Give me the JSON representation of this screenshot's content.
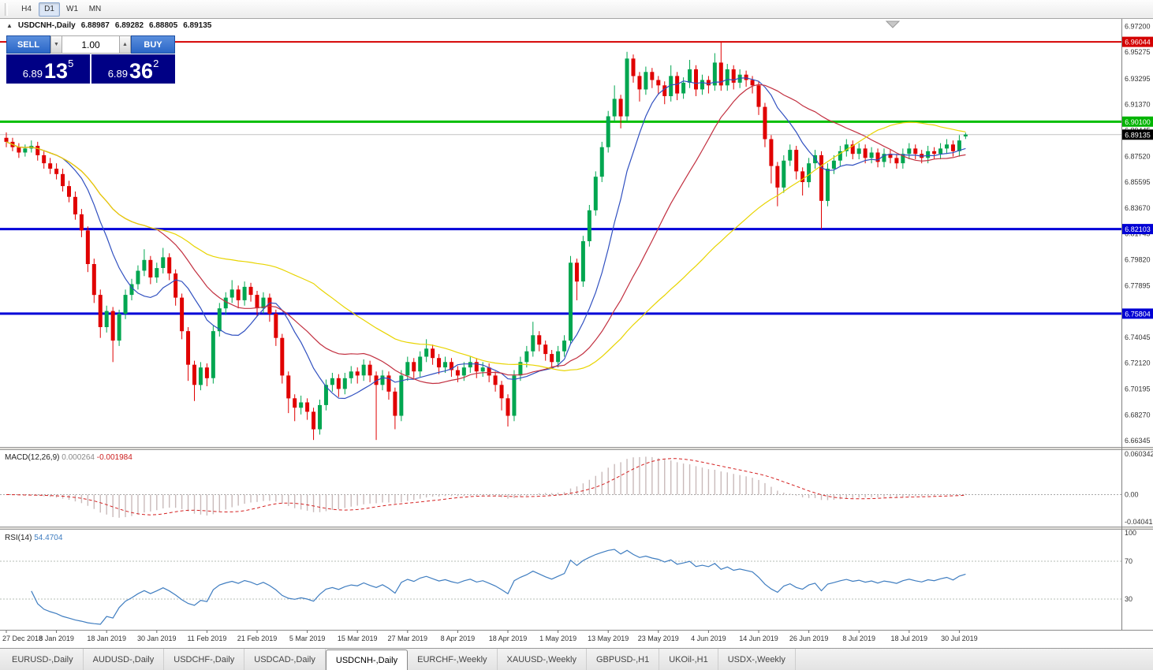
{
  "toolbar": {
    "periods": [
      {
        "label": "H4",
        "active": false
      },
      {
        "label": "D1",
        "active": true
      },
      {
        "label": "W1",
        "active": false
      },
      {
        "label": "MN",
        "active": false
      }
    ]
  },
  "chart_header": {
    "title": "USDCNH-,Daily",
    "open": "6.88987",
    "high": "6.89282",
    "low": "6.88805",
    "close": "6.89135"
  },
  "trade_panel": {
    "sell_label": "SELL",
    "buy_label": "BUY",
    "volume": "1.00",
    "sell_price": {
      "prefix": "6.89",
      "big": "13",
      "sup": "5"
    },
    "buy_price": {
      "prefix": "6.89",
      "big": "36",
      "sup": "2"
    }
  },
  "price_axis": {
    "ticks": [
      "6.97200",
      "6.95275",
      "6.93295",
      "6.91370",
      "6.89445",
      "6.87520",
      "6.85595",
      "6.83670",
      "6.81745",
      "6.79820",
      "6.77895",
      "6.75970",
      "6.74045",
      "6.72120",
      "6.70195",
      "6.68270",
      "6.66345"
    ],
    "tags": [
      {
        "value": "6.96044",
        "price": 6.96044,
        "bg": "#d40000"
      },
      {
        "value": "6.90100",
        "price": 6.901,
        "bg": "#00b400"
      },
      {
        "value": "6.89135",
        "price": 6.89135,
        "bg": "#000000"
      },
      {
        "value": "6.82103",
        "price": 6.82103,
        "bg": "#0000d4"
      },
      {
        "value": "6.75804",
        "price": 6.75804,
        "bg": "#0000d4"
      }
    ]
  },
  "macd": {
    "label": "MACD(12,26,9)",
    "main_value": "0.000264",
    "signal_value": "-0.001984",
    "fast": 12,
    "slow": 26,
    "signal_period": 9,
    "axis_ticks": [
      {
        "label": "0.060342",
        "value": 0.060342
      },
      {
        "label": "0.00",
        "value": 0.0
      },
      {
        "label": "-0.040415",
        "value": -0.040415
      }
    ],
    "ylim": [
      -0.040415,
      0.060342
    ],
    "bar_color": "#c9baba",
    "signal_color": "#d42020"
  },
  "rsi": {
    "label": "RSI(14)",
    "value": "54.4704",
    "period": 14,
    "axis_ticks": [
      {
        "label": "100",
        "value": 100
      },
      {
        "label": "70",
        "value": 70
      },
      {
        "label": "30",
        "value": 30
      }
    ],
    "levels": [
      70,
      30
    ],
    "line_color": "#3f7dc0"
  },
  "tabs": [
    {
      "label": "EURUSD-,Daily",
      "active": false
    },
    {
      "label": "AUDUSD-,Daily",
      "active": false
    },
    {
      "label": "USDCHF-,Daily",
      "active": false
    },
    {
      "label": "USDCAD-,Daily",
      "active": false
    },
    {
      "label": "USDCNH-,Daily",
      "active": true
    },
    {
      "label": "EURCHF-,Weekly",
      "active": false
    },
    {
      "label": "XAUUSD-,Weekly",
      "active": false
    },
    {
      "label": "GBPUSD-,H1",
      "active": false
    },
    {
      "label": "UKOil-,H1",
      "active": false
    },
    {
      "label": "USDX-,Weekly",
      "active": false
    }
  ],
  "chart_data": {
    "type": "candlestick",
    "symbol": "USDCNH",
    "timeframe": "Daily",
    "ylim": [
      6.6594,
      6.9775
    ],
    "current_price": 6.89135,
    "up_color": "#00a650",
    "down_color": "#e00000",
    "hlines": [
      {
        "price": 6.96044,
        "color": "#d40000",
        "width": 2
      },
      {
        "price": 6.901,
        "color": "#00be00",
        "width": 3
      },
      {
        "price": 6.82103,
        "color": "#0000d8",
        "width": 3
      },
      {
        "price": 6.75804,
        "color": "#0000d8",
        "width": 3
      }
    ],
    "moving_averages": [
      {
        "period": 10,
        "color": "#3050c0"
      },
      {
        "period": 25,
        "color": "#c23040"
      },
      {
        "period": 50,
        "color": "#e8d400"
      }
    ],
    "x_label_step": 8,
    "x_labels": [
      "27 Dec 2018",
      "8 Jan 2019",
      "18 Jan 2019",
      "30 Jan 2019",
      "11 Feb 2019",
      "21 Feb 2019",
      "5 Mar 2019",
      "15 Mar 2019",
      "27 Mar 2019",
      "8 Apr 2019",
      "18 Apr 2019",
      "1 May 2019",
      "13 May 2019",
      "23 May 2019",
      "4 Jun 2019",
      "14 Jun 2019",
      "26 Jun 2019",
      "8 Jul 2019",
      "18 Jul 2019",
      "30 Jul 2019"
    ],
    "ohlc": [
      [
        6.889,
        6.893,
        6.882,
        6.886
      ],
      [
        6.886,
        6.889,
        6.879,
        6.882
      ],
      [
        6.882,
        6.885,
        6.874,
        6.878
      ],
      [
        6.878,
        6.884,
        6.875,
        6.881
      ],
      [
        6.881,
        6.887,
        6.878,
        6.883
      ],
      [
        6.883,
        6.886,
        6.872,
        6.876
      ],
      [
        6.876,
        6.879,
        6.866,
        6.87
      ],
      [
        6.87,
        6.874,
        6.862,
        6.866
      ],
      [
        6.866,
        6.87,
        6.858,
        6.862
      ],
      [
        6.862,
        6.866,
        6.849,
        6.853
      ],
      [
        6.853,
        6.857,
        6.841,
        6.845
      ],
      [
        6.845,
        6.849,
        6.828,
        6.832
      ],
      [
        6.832,
        6.836,
        6.815,
        6.82
      ],
      [
        6.82,
        6.823,
        6.789,
        6.795
      ],
      [
        6.795,
        6.799,
        6.766,
        6.772
      ],
      [
        6.772,
        6.776,
        6.74,
        6.748
      ],
      [
        6.748,
        6.764,
        6.744,
        6.76
      ],
      [
        6.76,
        6.763,
        6.722,
        6.738
      ],
      [
        6.738,
        6.761,
        6.734,
        6.758
      ],
      [
        6.758,
        6.776,
        6.754,
        6.772
      ],
      [
        6.772,
        6.784,
        6.768,
        6.78
      ],
      [
        6.78,
        6.794,
        6.776,
        6.79
      ],
      [
        6.79,
        6.806,
        6.786,
        6.798
      ],
      [
        6.798,
        6.801,
        6.78,
        6.785
      ],
      [
        6.785,
        6.796,
        6.781,
        6.792
      ],
      [
        6.792,
        6.807,
        6.788,
        6.8
      ],
      [
        6.8,
        6.803,
        6.783,
        6.788
      ],
      [
        6.788,
        6.791,
        6.764,
        6.77
      ],
      [
        6.77,
        6.773,
        6.739,
        6.745
      ],
      [
        6.745,
        6.748,
        6.708,
        6.72
      ],
      [
        6.72,
        6.723,
        6.693,
        6.705
      ],
      [
        6.705,
        6.722,
        6.701,
        6.718
      ],
      [
        6.718,
        6.721,
        6.704,
        6.71
      ],
      [
        6.71,
        6.749,
        6.706,
        6.745
      ],
      [
        6.745,
        6.766,
        6.741,
        6.762
      ],
      [
        6.762,
        6.774,
        6.757,
        6.77
      ],
      [
        6.77,
        6.783,
        6.766,
        6.776
      ],
      [
        6.776,
        6.779,
        6.762,
        6.768
      ],
      [
        6.768,
        6.782,
        6.764,
        6.778
      ],
      [
        6.778,
        6.781,
        6.767,
        6.772
      ],
      [
        6.772,
        6.775,
        6.756,
        6.762
      ],
      [
        6.762,
        6.774,
        6.758,
        6.77
      ],
      [
        6.77,
        6.773,
        6.752,
        6.758
      ],
      [
        6.758,
        6.761,
        6.734,
        6.74
      ],
      [
        6.74,
        6.743,
        6.706,
        6.712
      ],
      [
        6.712,
        6.715,
        6.684,
        6.695
      ],
      [
        6.695,
        6.698,
        6.678,
        6.688
      ],
      [
        6.688,
        6.697,
        6.683,
        6.692
      ],
      [
        6.692,
        6.695,
        6.679,
        6.685
      ],
      [
        6.685,
        6.688,
        6.664,
        6.672
      ],
      [
        6.672,
        6.694,
        6.668,
        6.69
      ],
      [
        6.69,
        6.709,
        6.686,
        6.705
      ],
      [
        6.705,
        6.714,
        6.7,
        6.71
      ],
      [
        6.71,
        6.713,
        6.696,
        6.702
      ],
      [
        6.702,
        6.714,
        6.698,
        6.71
      ],
      [
        6.71,
        6.719,
        6.706,
        6.715
      ],
      [
        6.715,
        6.718,
        6.706,
        6.712
      ],
      [
        6.712,
        6.724,
        6.708,
        6.72
      ],
      [
        6.72,
        6.723,
        6.707,
        6.712
      ],
      [
        6.712,
        6.715,
        6.664,
        6.705
      ],
      [
        6.705,
        6.716,
        6.701,
        6.712
      ],
      [
        6.712,
        6.715,
        6.694,
        6.7
      ],
      [
        6.7,
        6.703,
        6.672,
        6.682
      ],
      [
        6.682,
        6.716,
        6.678,
        6.712
      ],
      [
        6.712,
        6.726,
        6.708,
        6.722
      ],
      [
        6.722,
        6.725,
        6.71,
        6.715
      ],
      [
        6.715,
        6.73,
        6.711,
        6.726
      ],
      [
        6.726,
        6.739,
        6.722,
        6.732
      ],
      [
        6.732,
        6.735,
        6.72,
        6.725
      ],
      [
        6.725,
        6.728,
        6.713,
        6.718
      ],
      [
        6.718,
        6.726,
        6.714,
        6.722
      ],
      [
        6.722,
        6.725,
        6.711,
        6.716
      ],
      [
        6.716,
        6.719,
        6.707,
        6.712
      ],
      [
        6.712,
        6.722,
        6.708,
        6.718
      ],
      [
        6.718,
        6.726,
        6.714,
        6.722
      ],
      [
        6.722,
        6.725,
        6.71,
        6.715
      ],
      [
        6.715,
        6.722,
        6.711,
        6.718
      ],
      [
        6.718,
        6.721,
        6.707,
        6.712
      ],
      [
        6.712,
        6.715,
        6.7,
        6.705
      ],
      [
        6.705,
        6.708,
        6.686,
        6.695
      ],
      [
        6.695,
        6.698,
        6.674,
        6.682
      ],
      [
        6.682,
        6.716,
        6.678,
        6.712
      ],
      [
        6.712,
        6.726,
        6.708,
        6.722
      ],
      [
        6.722,
        6.734,
        6.718,
        6.73
      ],
      [
        6.73,
        6.752,
        6.726,
        6.742
      ],
      [
        6.742,
        6.745,
        6.73,
        6.735
      ],
      [
        6.735,
        6.738,
        6.723,
        6.728
      ],
      [
        6.728,
        6.731,
        6.717,
        6.722
      ],
      [
        6.722,
        6.734,
        6.718,
        6.73
      ],
      [
        6.73,
        6.742,
        6.726,
        6.738
      ],
      [
        6.738,
        6.801,
        6.735,
        6.796
      ],
      [
        6.796,
        6.799,
        6.768,
        6.782
      ],
      [
        6.782,
        6.816,
        6.778,
        6.812
      ],
      [
        6.812,
        6.839,
        6.808,
        6.835
      ],
      [
        6.835,
        6.864,
        6.831,
        6.86
      ],
      [
        6.86,
        6.886,
        6.856,
        6.882
      ],
      [
        6.882,
        6.909,
        6.878,
        6.905
      ],
      [
        6.905,
        6.928,
        6.901,
        6.918
      ],
      [
        6.918,
        6.921,
        6.896,
        6.905
      ],
      [
        6.905,
        6.953,
        6.901,
        6.948
      ],
      [
        6.948,
        6.951,
        6.93,
        6.935
      ],
      [
        6.935,
        6.938,
        6.916,
        6.925
      ],
      [
        6.925,
        6.942,
        6.921,
        6.938
      ],
      [
        6.938,
        6.941,
        6.926,
        6.932
      ],
      [
        6.932,
        6.935,
        6.921,
        6.928
      ],
      [
        6.928,
        6.931,
        6.914,
        6.92
      ],
      [
        6.92,
        6.943,
        6.916,
        6.935
      ],
      [
        6.935,
        6.938,
        6.917,
        6.922
      ],
      [
        6.922,
        6.934,
        6.918,
        6.93
      ],
      [
        6.93,
        6.947,
        6.926,
        6.94
      ],
      [
        6.94,
        6.943,
        6.92,
        6.925
      ],
      [
        6.925,
        6.936,
        6.921,
        6.932
      ],
      [
        6.932,
        6.935,
        6.922,
        6.928
      ],
      [
        6.928,
        6.952,
        6.924,
        6.945
      ],
      [
        6.945,
        6.9604,
        6.924,
        6.928
      ],
      [
        6.928,
        6.944,
        6.924,
        6.94
      ],
      [
        6.94,
        6.943,
        6.925,
        6.93
      ],
      [
        6.93,
        6.94,
        6.926,
        6.936
      ],
      [
        6.936,
        6.939,
        6.927,
        6.932
      ],
      [
        6.932,
        6.935,
        6.922,
        6.928
      ],
      [
        6.928,
        6.931,
        6.906,
        6.912
      ],
      [
        6.912,
        6.915,
        6.882,
        6.888
      ],
      [
        6.888,
        6.891,
        6.855,
        6.868
      ],
      [
        6.868,
        6.871,
        6.838,
        6.852
      ],
      [
        6.852,
        6.876,
        6.848,
        6.872
      ],
      [
        6.872,
        6.884,
        6.868,
        6.88
      ],
      [
        6.88,
        6.883,
        6.858,
        6.864
      ],
      [
        6.864,
        6.867,
        6.846,
        6.856
      ],
      [
        6.856,
        6.874,
        6.852,
        6.87
      ],
      [
        6.87,
        6.88,
        6.866,
        6.876
      ],
      [
        6.876,
        6.879,
        6.821,
        6.842
      ],
      [
        6.842,
        6.87,
        6.838,
        6.866
      ],
      [
        6.866,
        6.876,
        6.862,
        6.872
      ],
      [
        6.872,
        6.883,
        6.868,
        6.879
      ],
      [
        6.879,
        6.888,
        6.875,
        6.884
      ],
      [
        6.884,
        6.887,
        6.873,
        6.877
      ],
      [
        6.877,
        6.885,
        6.873,
        6.881
      ],
      [
        6.881,
        6.884,
        6.87,
        6.874
      ],
      [
        6.874,
        6.882,
        6.87,
        6.878
      ],
      [
        6.878,
        6.881,
        6.867,
        6.871
      ],
      [
        6.871,
        6.881,
        6.867,
        6.877
      ],
      [
        6.877,
        6.88,
        6.87,
        6.874
      ],
      [
        6.874,
        6.877,
        6.866,
        6.87
      ],
      [
        6.87,
        6.881,
        6.866,
        6.877
      ],
      [
        6.877,
        6.885,
        6.873,
        6.881
      ],
      [
        6.881,
        6.884,
        6.873,
        6.877
      ],
      [
        6.877,
        6.88,
        6.87,
        6.874
      ],
      [
        6.874,
        6.883,
        6.87,
        6.879
      ],
      [
        6.879,
        6.882,
        6.873,
        6.877
      ],
      [
        6.877,
        6.885,
        6.873,
        6.881
      ],
      [
        6.881,
        6.888,
        6.877,
        6.884
      ],
      [
        6.884,
        6.887,
        6.875,
        6.879
      ],
      [
        6.879,
        6.891,
        6.875,
        6.887
      ],
      [
        6.89,
        6.8928,
        6.8881,
        6.8914
      ]
    ]
  }
}
